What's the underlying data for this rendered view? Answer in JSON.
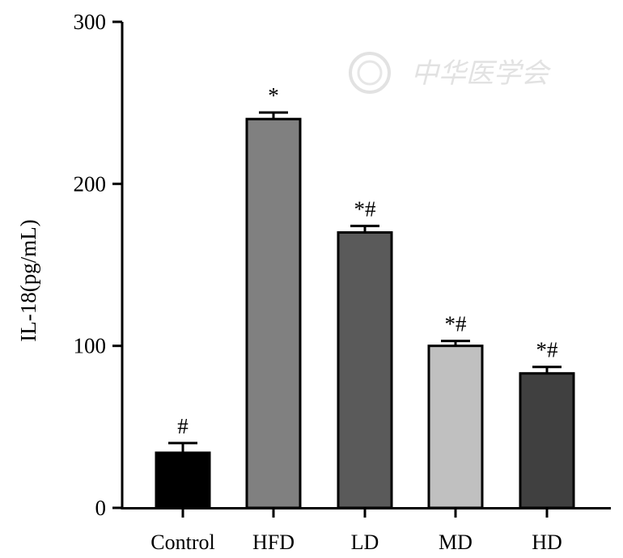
{
  "chart_data": {
    "type": "bar",
    "ylabel": "IL-18(pg/mL)",
    "xlabel": "",
    "ylim": [
      0,
      300
    ],
    "yticks": [
      0,
      100,
      200,
      300
    ],
    "categories": [
      "Control",
      "HFD",
      "LD",
      "MD",
      "HD"
    ],
    "values": [
      34,
      240,
      170,
      100,
      83
    ],
    "errors": [
      6,
      4,
      4,
      3,
      4
    ],
    "significance": [
      "#",
      "*",
      "*#",
      "*#",
      "*#"
    ],
    "bar_colors": [
      "#000000",
      "#808080",
      "#5a5a5a",
      "#c0c0c0",
      "#404040"
    ],
    "grid": false,
    "legend": "none"
  },
  "watermark": {
    "text": "中华医学会",
    "color": "#e2e2e2"
  }
}
